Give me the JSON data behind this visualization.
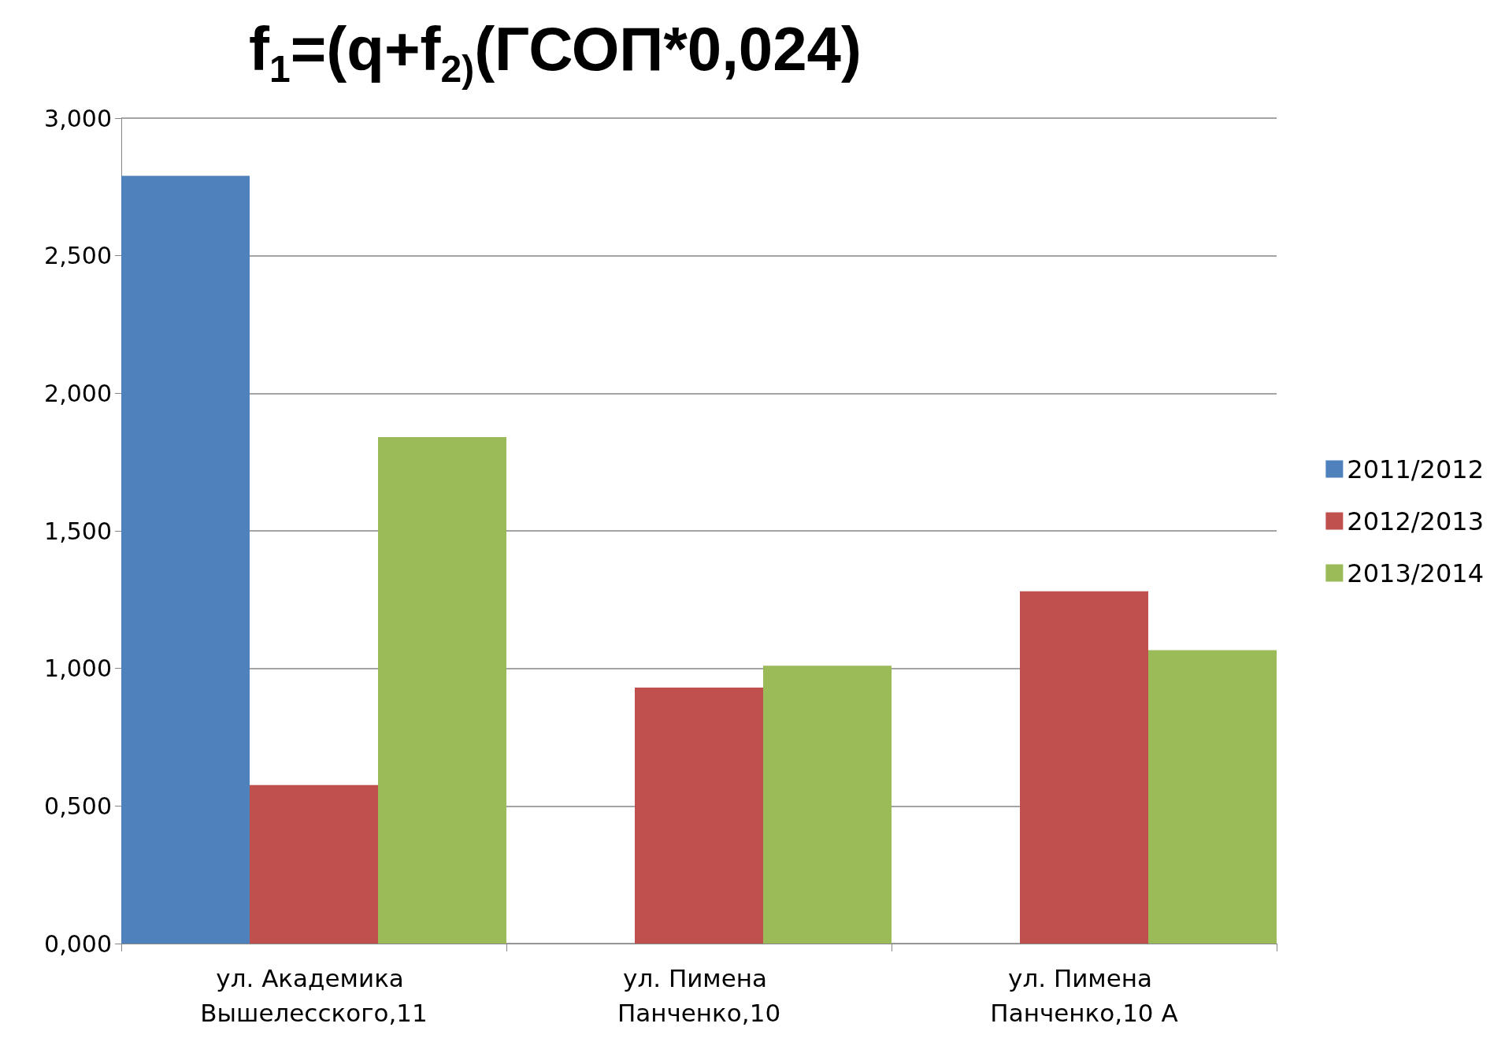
{
  "chart_data": {
    "type": "bar",
    "title": "f$_{1}$=(q+f$_{2)}$(ГСОП*0,024)",
    "categories": [
      "ул. Академика Вышелесского,11",
      "ул. Пимена Панченко,10",
      "ул. Пимена Панченко,10 А"
    ],
    "series": [
      {
        "name": "2011/2012",
        "color": "#4f81bd",
        "values": [
          2.79,
          null,
          null
        ]
      },
      {
        "name": "2012/2013",
        "color": "#c0504d",
        "values": [
          0.576,
          0.93,
          1.28
        ]
      },
      {
        "name": "2013/2014",
        "color": "#9bbb59",
        "values": [
          1.841,
          1.01,
          1.066
        ]
      }
    ],
    "ylim": [
      0,
      3
    ],
    "yticks": [
      {
        "value": 0,
        "label": "0,000"
      },
      {
        "value": 0.5,
        "label": "0,500"
      },
      {
        "value": 1,
        "label": "1,000"
      },
      {
        "value": 1.5,
        "label": "1,500"
      },
      {
        "value": 2,
        "label": "2,000"
      },
      {
        "value": 2.5,
        "label": "2,500"
      },
      {
        "value": 3,
        "label": "3,000"
      }
    ],
    "grid": "y",
    "legend": "right"
  }
}
